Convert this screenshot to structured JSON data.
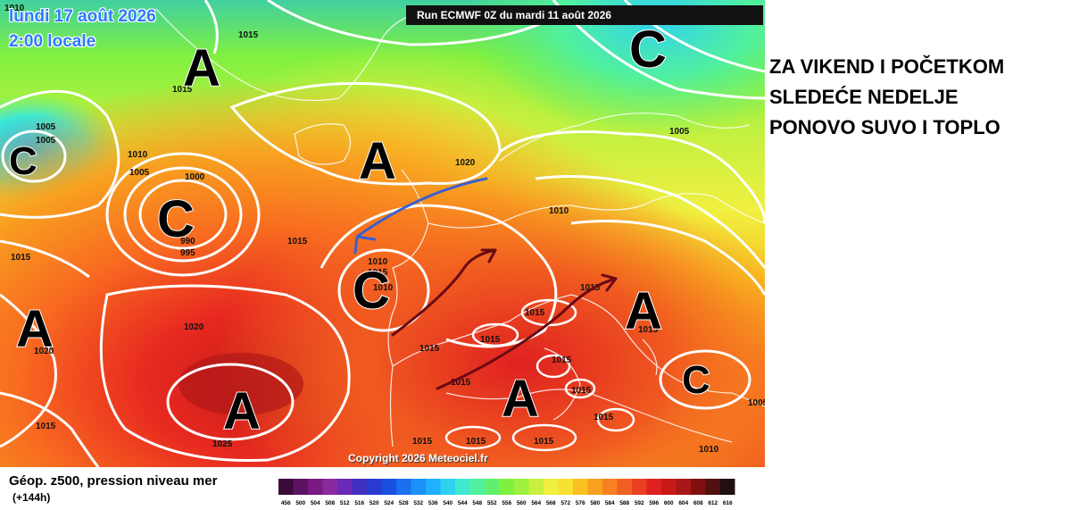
{
  "map": {
    "run_label": "Run ECMWF 0Z du mardi 11 août 2026",
    "date_line1": "lundi 17 août 2026",
    "date_line2": "2:00 locale",
    "copyright": "Copyright 2026 Meteociel.fr",
    "pressure_systems": [
      {
        "letter": "A",
        "type": "high"
      },
      {
        "letter": "C",
        "type": "low"
      },
      {
        "letter": "C",
        "type": "low"
      },
      {
        "letter": "C",
        "type": "low"
      },
      {
        "letter": "A",
        "type": "high"
      },
      {
        "letter": "A",
        "type": "high"
      },
      {
        "letter": "C",
        "type": "low"
      },
      {
        "letter": "A",
        "type": "high"
      },
      {
        "letter": "A",
        "type": "high"
      },
      {
        "letter": "A",
        "type": "high"
      },
      {
        "letter": "C",
        "type": "low"
      }
    ],
    "isobar_labels": [
      "1010",
      "1015",
      "1015",
      "1005",
      "1005",
      "1010",
      "1005",
      "1000",
      "990",
      "995",
      "1015",
      "1020",
      "1020",
      "1010",
      "1005",
      "1015",
      "1010",
      "1010",
      "1015",
      "1015",
      "1020",
      "1015",
      "1025",
      "1015",
      "1015",
      "1015",
      "1015",
      "1015",
      "1015",
      "1015",
      "1015",
      "1015",
      "1010",
      "1005",
      "1015",
      "1015"
    ]
  },
  "headline": {
    "line1": "ZA VIKEND I POČETKOM",
    "line2": "SLEDEĆE NEDELJE",
    "line3": "PONOVO SUVO I TOPLO"
  },
  "caption": {
    "title": "Géop. z500, pression niveau mer",
    "subtitle": "(+144h)"
  },
  "scale": {
    "labels": [
      "456",
      "500",
      "504",
      "508",
      "512",
      "516",
      "520",
      "524",
      "528",
      "532",
      "536",
      "540",
      "544",
      "548",
      "552",
      "556",
      "560",
      "564",
      "568",
      "572",
      "576",
      "580",
      "584",
      "588",
      "592",
      "596",
      "600",
      "604",
      "608",
      "612",
      "616"
    ],
    "colors": [
      "#3a0a3a",
      "#5c1460",
      "#7a1a82",
      "#8a2aa0",
      "#6a2ab8",
      "#4030c0",
      "#2a3ad0",
      "#1a50e0",
      "#1a70f0",
      "#1a90f8",
      "#20b0ff",
      "#30d0f0",
      "#40e8d0",
      "#50f0a0",
      "#60f070",
      "#80f040",
      "#a0f040",
      "#c8f040",
      "#f0f040",
      "#f8e030",
      "#f8c020",
      "#f8a020",
      "#f88020",
      "#f06020",
      "#e84020",
      "#e02020",
      "#c81818",
      "#a81818",
      "#801010",
      "#501010",
      "#201010"
    ]
  },
  "colors": {
    "arrow_blue": "#3a5fd0",
    "arrow_dark_red": "#6a0a14",
    "date_text": "#2a7bff"
  }
}
